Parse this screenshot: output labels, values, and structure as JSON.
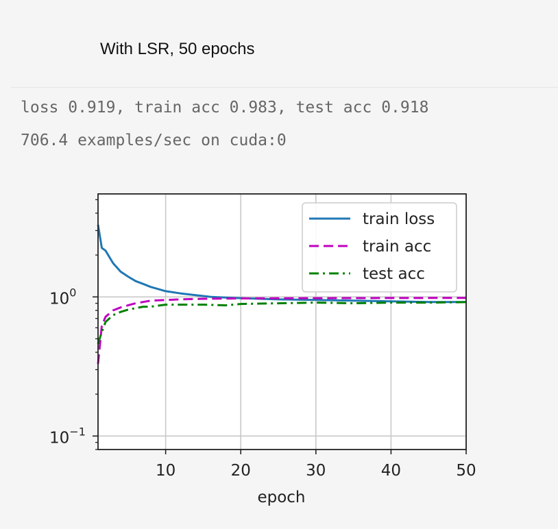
{
  "caption": "With LSR, 50 epochs",
  "output": {
    "line1": "loss 0.919, train acc 0.983, test acc 0.918",
    "line2": "706.4 examples/sec on cuda:0"
  },
  "chart_data": {
    "type": "line",
    "xlabel": "epoch",
    "ylabel": "",
    "yscale": "log",
    "xlim": [
      1,
      50
    ],
    "ylim": [
      0.08,
      5.5
    ],
    "xticks": [
      10,
      20,
      30,
      40,
      50
    ],
    "yticks": [
      {
        "value": 0.1,
        "label": "10",
        "exp": "−1"
      },
      {
        "value": 1,
        "label": "10",
        "exp": "0"
      }
    ],
    "grid": true,
    "legend_position": "top-right",
    "series": [
      {
        "name": "train loss",
        "color": "#1f77b4",
        "dash": "solid",
        "x": [
          1,
          1.5,
          2,
          3,
          4,
          5,
          6,
          7,
          8,
          9,
          10,
          12,
          14,
          16,
          18,
          20,
          25,
          30,
          35,
          40,
          45,
          50
        ],
        "y": [
          3.3,
          2.25,
          2.15,
          1.75,
          1.52,
          1.4,
          1.3,
          1.24,
          1.18,
          1.14,
          1.1,
          1.06,
          1.03,
          1.0,
          0.99,
          0.98,
          0.96,
          0.95,
          0.94,
          0.93,
          0.92,
          0.919
        ]
      },
      {
        "name": "train acc",
        "color": "#bf00bf",
        "dash": "dashed",
        "x": [
          1,
          1.5,
          2,
          3,
          4,
          5,
          6,
          7,
          8,
          10,
          12,
          15,
          20,
          25,
          30,
          35,
          40,
          45,
          50
        ],
        "y": [
          0.33,
          0.62,
          0.72,
          0.8,
          0.84,
          0.87,
          0.9,
          0.92,
          0.94,
          0.95,
          0.96,
          0.97,
          0.975,
          0.978,
          0.98,
          0.981,
          0.982,
          0.983,
          0.983
        ]
      },
      {
        "name": "test acc",
        "color": "#008000",
        "dash": "dashdot",
        "x": [
          1,
          1.5,
          2,
          3,
          4,
          5,
          6,
          7,
          8,
          10,
          12,
          15,
          18,
          20,
          25,
          30,
          35,
          40,
          45,
          50
        ],
        "y": [
          0.46,
          0.56,
          0.66,
          0.74,
          0.78,
          0.81,
          0.83,
          0.85,
          0.85,
          0.88,
          0.88,
          0.88,
          0.87,
          0.89,
          0.9,
          0.91,
          0.9,
          0.91,
          0.91,
          0.918
        ]
      }
    ]
  }
}
